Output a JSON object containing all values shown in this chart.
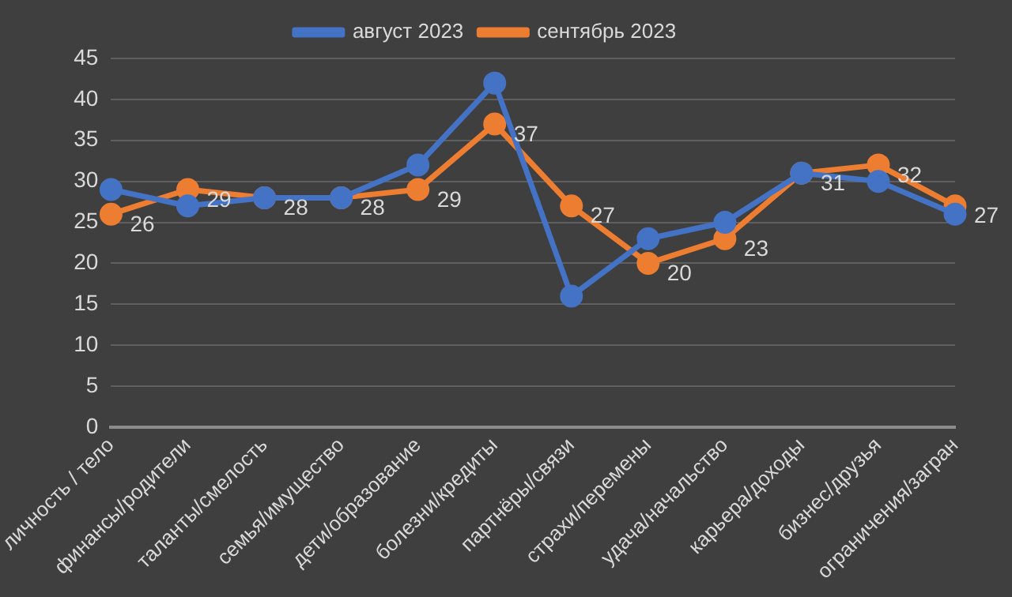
{
  "chart_data": {
    "type": "line",
    "categories": [
      "личность / тело",
      "финансы/родители",
      "таланты/смелость",
      "семья/имущество",
      "дети/образование",
      "болезни/кредиты",
      "партнёры/связи",
      "страхи/перемены",
      "удача/начальство",
      "карьера/доходы",
      "бизнес/друзья",
      "ограничения/загран"
    ],
    "series": [
      {
        "name": "август 2023",
        "color": "#4472c4",
        "values": [
          29,
          27,
          28,
          28,
          32,
          42,
          16,
          23,
          25,
          31,
          30,
          26
        ]
      },
      {
        "name": "сентябрь 2023",
        "color": "#ed7d31",
        "values": [
          26,
          29,
          28,
          28,
          29,
          37,
          27,
          20,
          23,
          31,
          32,
          27
        ],
        "value_labels": [
          "26",
          "29",
          "28",
          "28",
          "29",
          "37",
          "27",
          "20",
          "23",
          "31",
          "32",
          "27"
        ]
      }
    ],
    "ylim": [
      0,
      45
    ],
    "yticks": [
      0,
      5,
      10,
      15,
      20,
      25,
      30,
      35,
      40,
      45
    ],
    "grid": "y",
    "legend": "top",
    "marker": "circle",
    "line_style": "solid"
  }
}
